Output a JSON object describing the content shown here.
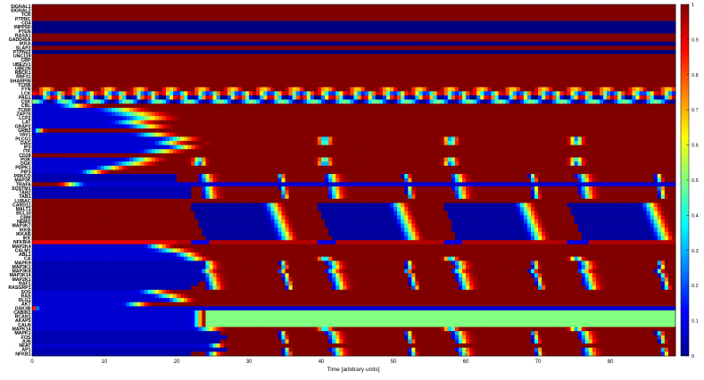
{
  "chart_data": {
    "type": "heatmap",
    "title": "",
    "xlabel": "Time [arbitrary units]",
    "ylabel": "",
    "xlim": [
      0,
      89
    ],
    "xticks": [
      0,
      10,
      20,
      30,
      40,
      50,
      60,
      70,
      80
    ],
    "colormap": "jet",
    "colorbar": {
      "range": [
        0,
        1
      ],
      "ticks": [
        0,
        0.1,
        0.2,
        0.3,
        0.4,
        0.5,
        0.6,
        0.7,
        0.8,
        0.9,
        1
      ],
      "tick_labels": [
        "0",
        "0.1",
        "0.2",
        "0.3",
        "0.4",
        "0.5",
        "0.6",
        "0.7",
        "0.8",
        "0.9",
        "1"
      ]
    },
    "osc_period": 17.4,
    "rows": [
      {
        "name": "SIGNAL1",
        "pattern": "const",
        "v": 1
      },
      {
        "name": "SIGNAL2",
        "pattern": "const",
        "v": 1
      },
      {
        "name": "TCR",
        "pattern": "const",
        "v": 1
      },
      {
        "name": "PTPRC",
        "pattern": "const",
        "v": 1
      },
      {
        "name": "CD4",
        "pattern": "const",
        "v": 0
      },
      {
        "name": "INPP5D",
        "pattern": "const",
        "v": 0
      },
      {
        "name": "PTEN",
        "pattern": "const",
        "v": 0
      },
      {
        "name": "RASA1",
        "pattern": "const",
        "v": 1
      },
      {
        "name": "GADD45A",
        "pattern": "const",
        "v": 1
      },
      {
        "name": "IKKA",
        "pattern": "const",
        "v": 0
      },
      {
        "name": "SLAP2",
        "pattern": "const",
        "v": 1
      },
      {
        "name": "PTPN22",
        "pattern": "const",
        "v": 0
      },
      {
        "name": "UNC119",
        "pattern": "const",
        "v": 1
      },
      {
        "name": "CBP",
        "pattern": "const",
        "v": 1
      },
      {
        "name": "UBE2V1",
        "pattern": "const",
        "v": 1
      },
      {
        "name": "UBE2N",
        "pattern": "const",
        "v": 1
      },
      {
        "name": "RBCK1",
        "pattern": "const",
        "v": 1
      },
      {
        "name": "RNF31",
        "pattern": "const",
        "v": 1
      },
      {
        "name": "SHARPIN",
        "pattern": "const",
        "v": 1
      },
      {
        "name": "TCRB",
        "pattern": "const",
        "v": 1
      },
      {
        "name": "FYN",
        "pattern": "osc",
        "base": 0.92,
        "amp": 0.25,
        "phase": 0.3,
        "start": 0
      },
      {
        "name": "LCK",
        "pattern": "osc",
        "base": 0.55,
        "amp": 0.4,
        "phase": 0.1,
        "start": 0
      },
      {
        "name": "PAG1",
        "pattern": "osc",
        "base": 0.45,
        "amp": 0.5,
        "phase": 0.6,
        "start": 0
      },
      {
        "name": "CSK",
        "pattern": "osc",
        "base": 0.25,
        "amp": 0.25,
        "phase": 0.2,
        "start": 0
      },
      {
        "name": "CBL",
        "pattern": "rise",
        "t0": 3,
        "t1": 9
      },
      {
        "name": "TCRR",
        "pattern": "rise",
        "t0": 8,
        "t1": 17
      },
      {
        "name": "ZAP70",
        "pattern": "rise",
        "t0": 9,
        "t1": 20
      },
      {
        "name": "LCP2",
        "pattern": "rise",
        "t0": 11,
        "t1": 21
      },
      {
        "name": "LAT",
        "pattern": "rise",
        "t0": 10,
        "t1": 18
      },
      {
        "name": "GRAP2",
        "pattern": "rise",
        "t0": 12,
        "t1": 20
      },
      {
        "name": "GRB2",
        "pattern": "rise",
        "t0": 0,
        "t1": 2
      },
      {
        "name": "VAV1",
        "pattern": "rise",
        "t0": 13,
        "t1": 21
      },
      {
        "name": "PLCG1",
        "pattern": "riseosc",
        "t0": 17,
        "t1": 24,
        "lo": 0.25
      },
      {
        "name": "DAG",
        "pattern": "riseosc",
        "t0": 16,
        "t1": 22,
        "lo": 0.35
      },
      {
        "name": "IP3",
        "pattern": "rise",
        "t0": 18,
        "t1": 24
      },
      {
        "name": "ITK",
        "pattern": "rise",
        "t0": 14,
        "t1": 22
      },
      {
        "name": "CD28",
        "pattern": "const",
        "v": 1
      },
      {
        "name": "PI3K",
        "pattern": "riseosc",
        "t0": 12,
        "t1": 19,
        "lo": 0.4
      },
      {
        "name": "DGK",
        "pattern": "riseosc",
        "t0": 10,
        "t1": 18,
        "lo": 0.2
      },
      {
        "name": "PDPK1",
        "pattern": "rise",
        "t0": 8,
        "t1": 14
      },
      {
        "name": "PIP3",
        "pattern": "rise",
        "t0": 6,
        "t1": 11
      },
      {
        "name": "PRKCQ",
        "pattern": "spikes",
        "t0": 20,
        "phase": 0
      },
      {
        "name": "MAP3K",
        "pattern": "spikes",
        "t0": 20,
        "phase": 0.3
      },
      {
        "name": "TRAF6",
        "pattern": "fall",
        "t0": 3,
        "t1": 8
      },
      {
        "name": "SQSTM1",
        "pattern": "spikes",
        "t0": 22,
        "phase": 0.6
      },
      {
        "name": "TAB2",
        "pattern": "spikes",
        "t0": 22,
        "phase": 0.8
      },
      {
        "name": "TAB1",
        "pattern": "spikes",
        "t0": 22,
        "phase": 1.0
      },
      {
        "name": "LUBAC",
        "pattern": "const",
        "v": 1
      },
      {
        "name": "CARD11",
        "pattern": "dip",
        "t0": 20,
        "phase": 0
      },
      {
        "name": "MALT1",
        "pattern": "dip",
        "t0": 20,
        "phase": 0.3
      },
      {
        "name": "BCL10",
        "pattern": "dip",
        "t0": 20,
        "phase": 0.6
      },
      {
        "name": "CBM",
        "pattern": "dip",
        "t0": 20,
        "phase": 0.9
      },
      {
        "name": "NEMO",
        "pattern": "dip",
        "t0": 20,
        "phase": 1.2
      },
      {
        "name": "MAP3K7",
        "pattern": "dip",
        "t0": 20,
        "phase": 1.5
      },
      {
        "name": "IKKB",
        "pattern": "dip",
        "t0": 20,
        "phase": 1.8
      },
      {
        "name": "IKKAB",
        "pattern": "dip",
        "t0": 20,
        "phase": 2.1
      },
      {
        "name": "IKK",
        "pattern": "dip",
        "t0": 20,
        "phase": 2.4
      },
      {
        "name": "NFKBIA",
        "pattern": "lowband",
        "t0": 0
      },
      {
        "name": "MAP2K4",
        "pattern": "rise",
        "t0": 15,
        "t1": 20
      },
      {
        "name": "CALM1",
        "pattern": "rise",
        "t0": 16,
        "t1": 23
      },
      {
        "name": "ABL1",
        "pattern": "rise",
        "t0": 19,
        "t1": 24
      },
      {
        "name": "CA",
        "pattern": "riseosc",
        "t0": 20,
        "t1": 25,
        "lo": 0.3
      },
      {
        "name": "MAPK9",
        "pattern": "spikes",
        "t0": 24,
        "phase": 0.5
      },
      {
        "name": "MAP3K1",
        "pattern": "spikes",
        "t0": 24,
        "phase": 0.8
      },
      {
        "name": "MAP3K8",
        "pattern": "spikes",
        "t0": 23,
        "phase": 0.2
      },
      {
        "name": "MAP3K14",
        "pattern": "spikes",
        "t0": 24,
        "phase": 1.1
      },
      {
        "name": "MAP2K1",
        "pattern": "spikes",
        "t0": 24,
        "phase": 1.4
      },
      {
        "name": "RAF1",
        "pattern": "spikes",
        "t0": 23,
        "phase": 1.7
      },
      {
        "name": "RASGRP1",
        "pattern": "spikes",
        "t0": 22,
        "phase": 2.0
      },
      {
        "name": "SOS",
        "pattern": "rise",
        "t0": 14,
        "t1": 20
      },
      {
        "name": "RAS",
        "pattern": "rise",
        "t0": 16,
        "t1": 22
      },
      {
        "name": "DLG1",
        "pattern": "rise",
        "t0": 18,
        "t1": 23
      },
      {
        "name": "AKT",
        "pattern": "rise",
        "t0": 12,
        "t1": 17
      },
      {
        "name": "GSK3B",
        "pattern": "fall",
        "t0": 0,
        "t1": 1
      },
      {
        "name": "CABIN1",
        "pattern": "green",
        "t0": 24
      },
      {
        "name": "RCAN1",
        "pattern": "green",
        "t0": 24
      },
      {
        "name": "AKAP5",
        "pattern": "green",
        "t0": 24
      },
      {
        "name": "CALN",
        "pattern": "green",
        "t0": 24
      },
      {
        "name": "MAPK14",
        "pattern": "riseosc",
        "t0": 22,
        "t1": 27,
        "lo": 0.3
      },
      {
        "name": "MAPK1",
        "pattern": "spikes",
        "t0": 26,
        "phase": 0.4
      },
      {
        "name": "FOS",
        "pattern": "spikes",
        "t0": 27,
        "phase": 0.7
      },
      {
        "name": "JUN",
        "pattern": "spikes",
        "t0": 26,
        "phase": 1.0
      },
      {
        "name": "NFAT",
        "pattern": "rise",
        "t0": 24,
        "t1": 27
      },
      {
        "name": "AP1",
        "pattern": "spikes",
        "t0": 27,
        "phase": 1.3
      },
      {
        "name": "NFKB1",
        "pattern": "spikes",
        "t0": 22,
        "phase": 1.6
      }
    ]
  }
}
